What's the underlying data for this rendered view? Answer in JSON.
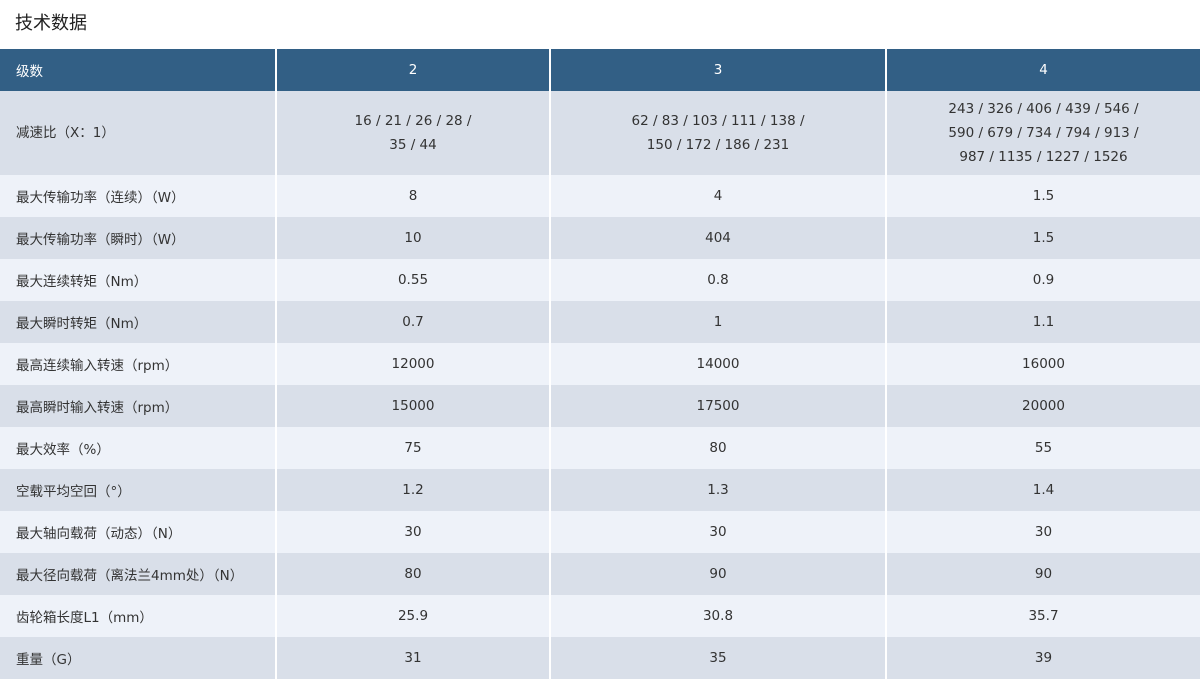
{
  "title": "技术数据",
  "header": [
    "级数",
    "2",
    "3",
    "4"
  ],
  "ratio_row": {
    "label": "减速比（X：1）",
    "cells": [
      [
        "16 / 21 / 26 / 28 /",
        "35 / 44"
      ],
      [
        "62 / 83 / 103 / 111 / 138 /",
        "150 / 172 / 186 / 231"
      ],
      [
        "243 / 326 / 406 / 439 / 546 /",
        "590 / 679 / 734 / 794 / 913 /",
        "987 / 1135 / 1227 / 1526"
      ]
    ]
  },
  "rows": [
    [
      "最大传输功率（连续）（W）",
      "8",
      "4",
      "1.5"
    ],
    [
      "最大传输功率（瞬时）（W）",
      "10",
      "404",
      "1.5"
    ],
    [
      "最大连续转矩（Nm）",
      "0.55",
      "0.8",
      "0.9"
    ],
    [
      "最大瞬时转矩（Nm）",
      "0.7",
      "1",
      "1.1"
    ],
    [
      "最高连续输入转速（rpm）",
      "12000",
      "14000",
      "16000"
    ],
    [
      "最高瞬时输入转速（rpm）",
      "15000",
      "17500",
      "20000"
    ],
    [
      "最大效率（%）",
      "75",
      "80",
      "55"
    ],
    [
      "空载平均空回（°）",
      "1.2",
      "1.3",
      "1.4"
    ],
    [
      "最大轴向载荷（动态）（N）",
      "30",
      "30",
      "30"
    ],
    [
      "最大径向载荷（离法兰4mm处）（N）",
      "80",
      "90",
      "90"
    ],
    [
      "齿轮箱长度L1（mm）",
      "25.9",
      "30.8",
      "35.7"
    ],
    [
      "重量（G）",
      "31",
      "35",
      "39"
    ]
  ]
}
